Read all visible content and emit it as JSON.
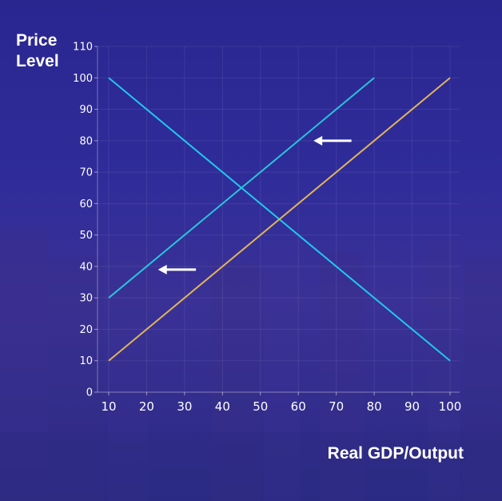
{
  "chart_data": {
    "type": "line",
    "title": "",
    "ylabel_line1": "Price",
    "ylabel_line2": "Level",
    "xlabel": "Real GDP/Output",
    "xlim": [
      10,
      100
    ],
    "ylim": [
      0,
      110
    ],
    "x_ticks": [
      10,
      20,
      30,
      40,
      50,
      60,
      70,
      80,
      90,
      100
    ],
    "y_ticks": [
      0,
      10,
      20,
      30,
      40,
      50,
      60,
      70,
      80,
      90,
      100,
      110
    ],
    "grid": true,
    "series": [
      {
        "color": "#20c8ec",
        "points": [
          [
            10,
            100
          ],
          [
            100,
            10
          ]
        ]
      },
      {
        "color": "#2ac4d8",
        "points": [
          [
            10,
            30
          ],
          [
            80,
            100
          ]
        ]
      },
      {
        "color": "#e0b45a",
        "points": [
          [
            10,
            10
          ],
          [
            100,
            100
          ]
        ]
      }
    ],
    "arrows": [
      {
        "from": [
          74,
          80
        ],
        "to": [
          64,
          80
        ],
        "direction": "left",
        "color": "#ffffff"
      },
      {
        "from": [
          33,
          39
        ],
        "to": [
          23,
          39
        ],
        "direction": "left",
        "color": "#ffffff"
      }
    ]
  }
}
